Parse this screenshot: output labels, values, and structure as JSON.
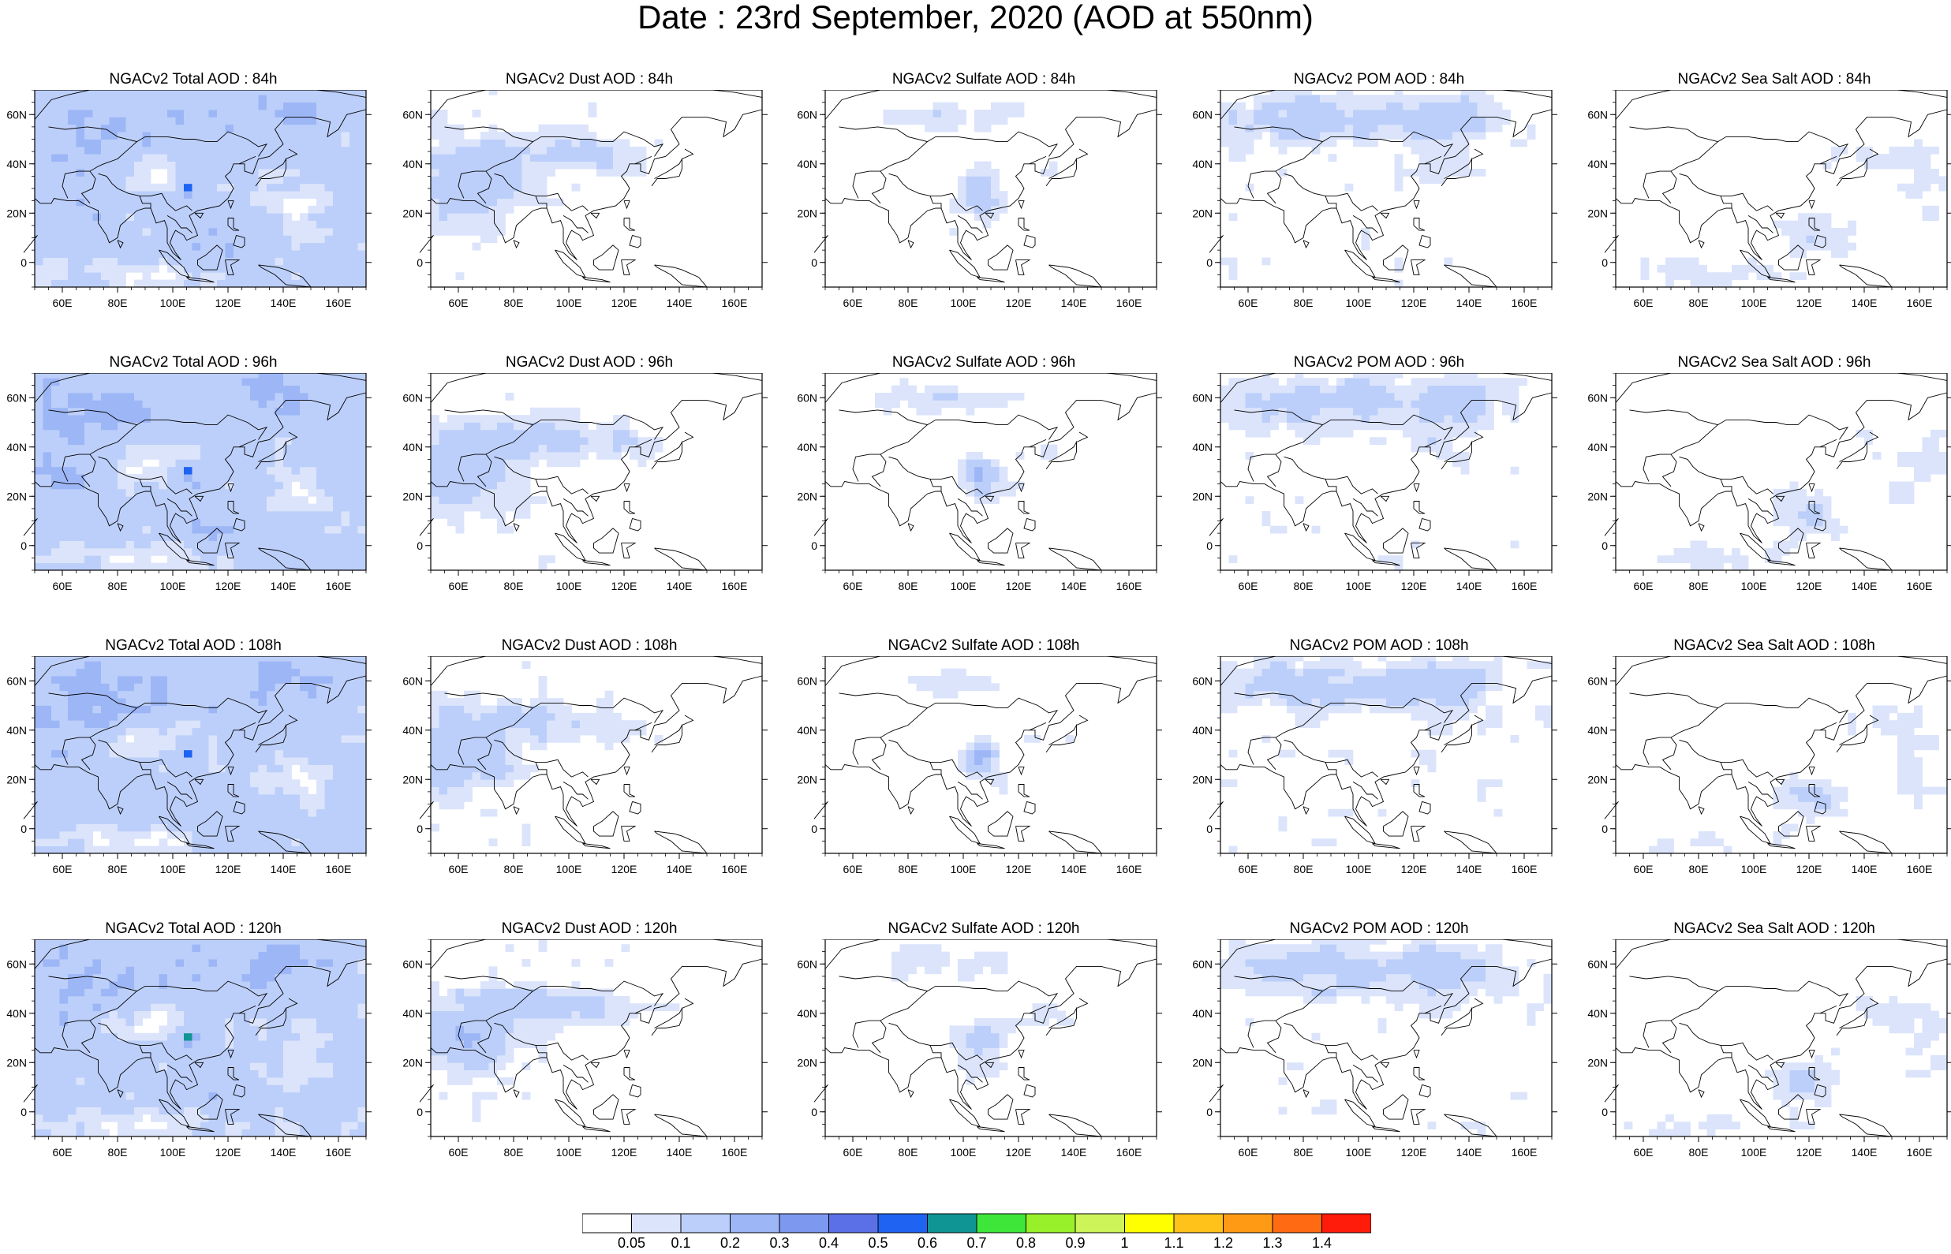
{
  "title": "Date : 23rd September, 2020 (AOD at 550nm)",
  "axes": {
    "xticks": [
      "60E",
      "80E",
      "100E",
      "120E",
      "140E",
      "160E"
    ],
    "yticks": [
      "60N",
      "40N",
      "20N",
      "0"
    ]
  },
  "rows": [
    {
      "hour": "84h",
      "titles": [
        "NGACv2 Total AOD : 84h",
        "NGACv2 Dust AOD : 84h",
        "NGACv2 Sulfate AOD : 84h",
        "NGACv2 POM AOD : 84h",
        "NGACv2 Sea Salt AOD : 84h"
      ]
    },
    {
      "hour": "96h",
      "titles": [
        "NGACv2 Total AOD : 96h",
        "NGACv2 Dust AOD : 96h",
        "NGACv2 Sulfate AOD : 96h",
        "NGACv2 POM AOD : 96h",
        "NGACv2 Sea Salt AOD : 96h"
      ]
    },
    {
      "hour": "108h",
      "titles": [
        "NGACv2 Total AOD : 108h",
        "NGACv2 Dust AOD : 108h",
        "NGACv2 Sulfate AOD : 108h",
        "NGACv2 POM AOD : 108h",
        "NGACv2 Sea Salt AOD : 108h"
      ]
    },
    {
      "hour": "120h",
      "titles": [
        "NGACv2 Total AOD : 120h",
        "NGACv2 Dust AOD : 120h",
        "NGACv2 Sulfate AOD : 120h",
        "NGACv2 POM AOD : 120h",
        "NGACv2 Sea Salt  AOD : 120h"
      ]
    }
  ],
  "colorbar": {
    "labels": [
      "0.05",
      "0.1",
      "0.2",
      "0.3",
      "0.4",
      "0.5",
      "0.6",
      "0.7",
      "0.8",
      "0.9",
      "1",
      "1.1",
      "1.2",
      "1.3",
      "1.4"
    ],
    "colors": [
      "#ffffff",
      "#dbe4fb",
      "#bccffa",
      "#9db6f6",
      "#7d98ef",
      "#5b6fe6",
      "#1e63f2",
      "#109595",
      "#3fe63a",
      "#98f02a",
      "#cdf55a",
      "#ffff00",
      "#ffc21a",
      "#ff9a14",
      "#ff6a12",
      "#ff1c0a"
    ]
  }
}
